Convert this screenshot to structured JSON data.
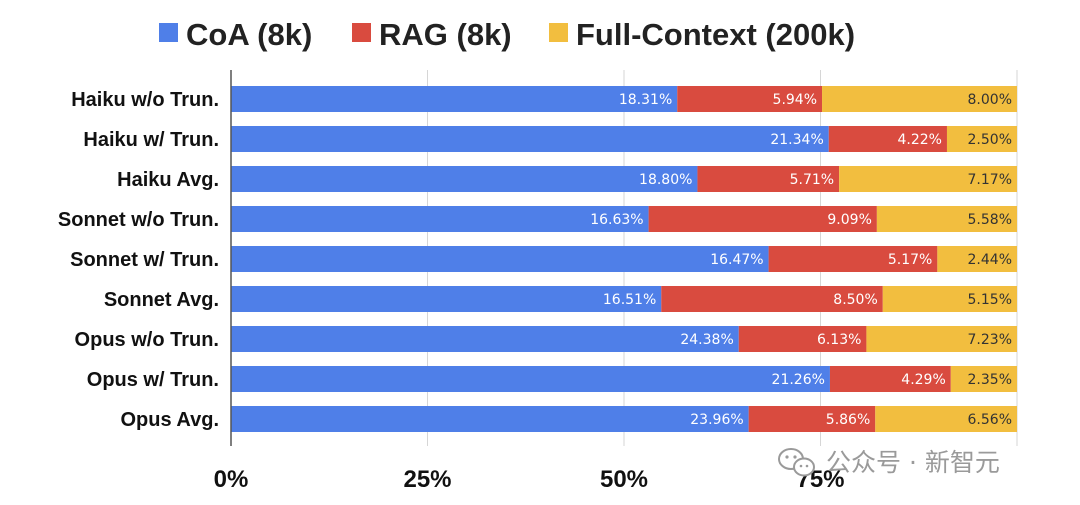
{
  "chart_data": {
    "type": "bar",
    "orientation": "horizontal",
    "stacked": true,
    "categories": [
      "Haiku w/o Trun.",
      "Haiku w/ Trun.",
      "Haiku Avg.",
      "Sonnet w/o Trun.",
      "Sonnet w/ Trun.",
      "Sonnet Avg.",
      "Opus w/o Trun.",
      "Opus w/ Trun.",
      "Opus Avg."
    ],
    "series": [
      {
        "name": "CoA (8k)",
        "color": "#4f7fe8",
        "values": [
          18.31,
          21.34,
          18.8,
          16.63,
          16.47,
          16.51,
          24.38,
          21.26,
          23.96
        ],
        "labels": [
          "18.31%",
          "21.34%",
          "18.80%",
          "16.63%",
          "16.47%",
          "16.51%",
          "24.38%",
          "21.26%",
          "23.96%"
        ]
      },
      {
        "name": "RAG (8k)",
        "color": "#d94b3f",
        "values": [
          5.94,
          4.22,
          5.71,
          9.09,
          5.17,
          8.5,
          6.13,
          4.29,
          5.86
        ],
        "labels": [
          "5.94%",
          "4.22%",
          "5.71%",
          "9.09%",
          "5.17%",
          "8.50%",
          "6.13%",
          "4.29%",
          "5.86%"
        ]
      },
      {
        "name": "Full-Context (200k)",
        "color": "#f2be3f",
        "values": [
          8.0,
          2.5,
          7.17,
          5.58,
          2.44,
          5.15,
          7.23,
          2.35,
          6.56
        ],
        "labels": [
          "8.00%",
          "2.50%",
          "7.17%",
          "5.58%",
          "2.44%",
          "5.15%",
          "7.23%",
          "2.35%",
          "6.56%"
        ]
      }
    ],
    "normalized": true,
    "xlim": [
      0,
      100
    ],
    "x_ticks": [
      {
        "value": 0,
        "label": "0%"
      },
      {
        "value": 25,
        "label": "25%"
      },
      {
        "value": 50,
        "label": "50%"
      },
      {
        "value": 75,
        "label": "75%"
      },
      {
        "value": 100,
        "label": ""
      }
    ],
    "grid": true,
    "legend": "top"
  },
  "watermark": {
    "text": "公众号 · 新智元",
    "icon": "wechat-icon"
  }
}
